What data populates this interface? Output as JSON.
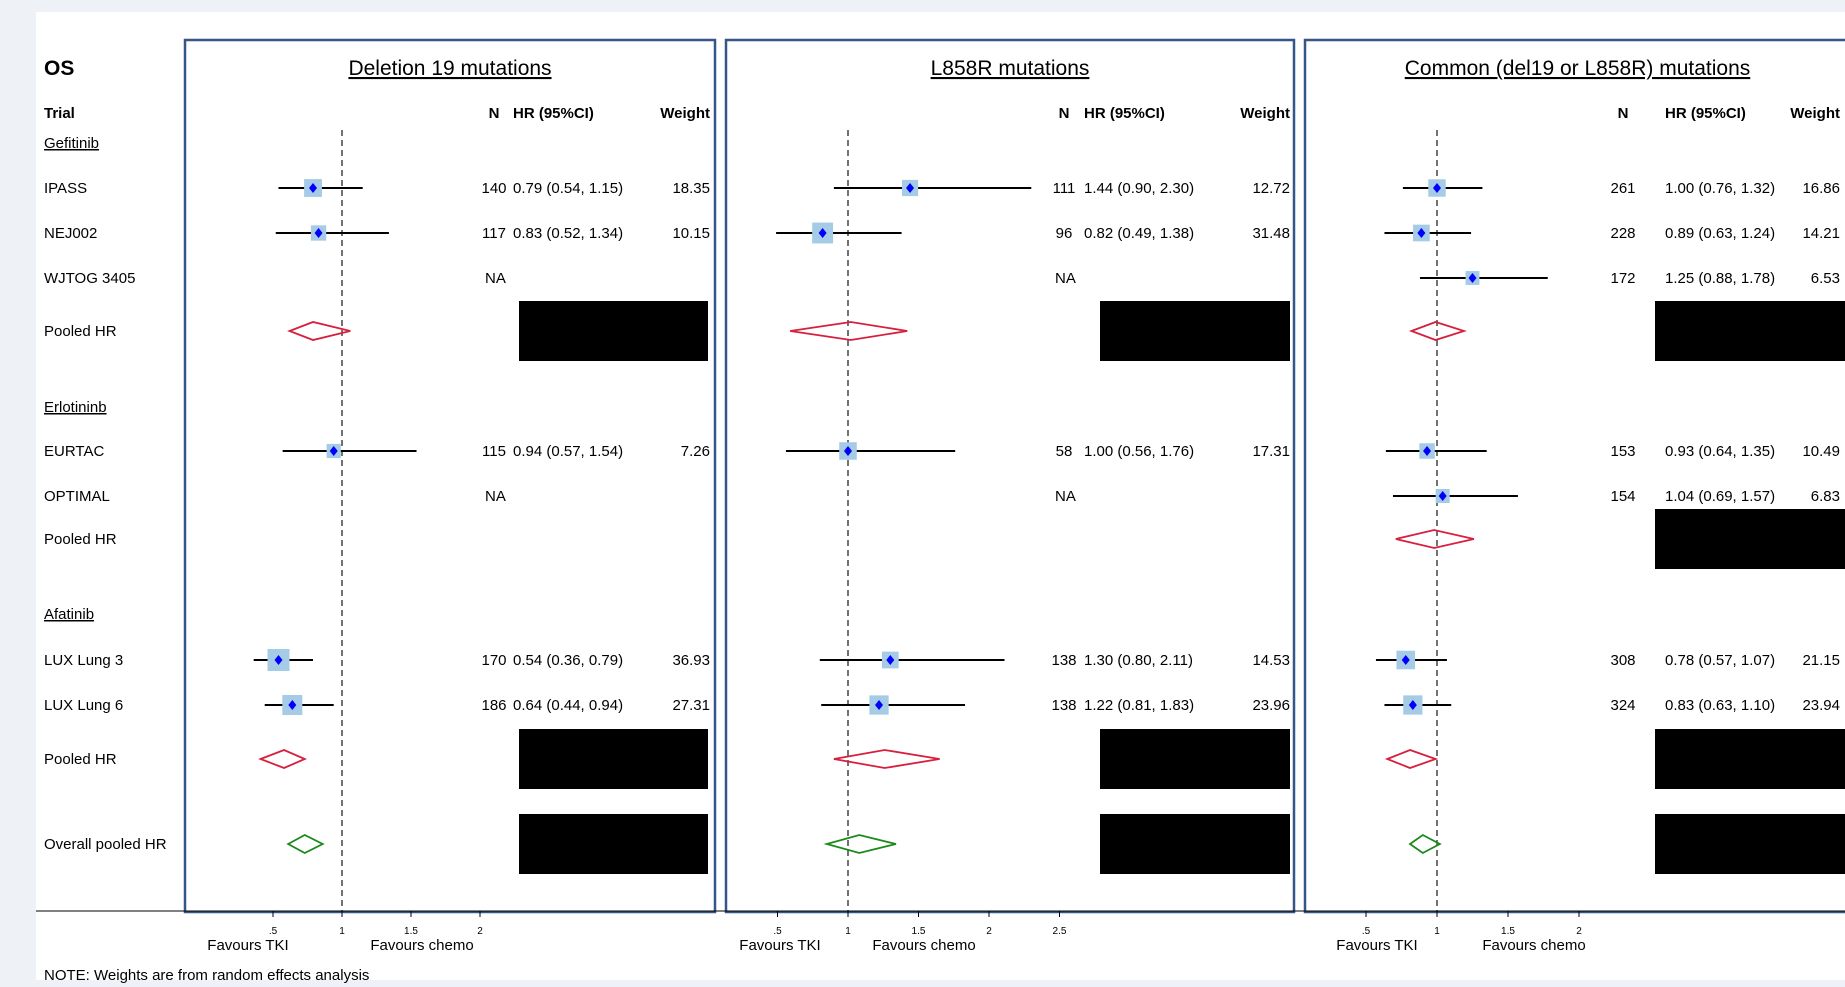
{
  "figure": {
    "outcome": "OS",
    "trial_header": "Trial",
    "col_n": "N",
    "col_hr": "HR (95%CI)",
    "col_weight": "Weight",
    "note": "NOTE: Weights are from random effects analysis",
    "favours_left": "Favours TKI",
    "favours_right": "Favours chemo"
  },
  "colors": {
    "frame": "#34568b",
    "marker": "#0000ff",
    "box": "#a6cbe6",
    "pooled": "#d6203e",
    "overall": "#1a8a1a",
    "redacted": "#000000"
  },
  "rows": [
    {
      "label": "Gefitinib",
      "type": "header"
    },
    {
      "label": "IPASS",
      "type": "study"
    },
    {
      "label": "NEJ002",
      "type": "study"
    },
    {
      "label": "WJTOG 3405",
      "type": "study"
    },
    {
      "label": "Pooled HR",
      "type": "pooled"
    },
    {
      "label": "Erlotininb",
      "type": "header"
    },
    {
      "label": "EURTAC",
      "type": "study"
    },
    {
      "label": "OPTIMAL",
      "type": "study"
    },
    {
      "label": "Pooled HR",
      "type": "pooled"
    },
    {
      "label": "Afatinib",
      "type": "header"
    },
    {
      "label": "LUX Lung 3",
      "type": "study"
    },
    {
      "label": "LUX Lung 6",
      "type": "study"
    },
    {
      "label": "Pooled HR",
      "type": "pooled"
    },
    {
      "label": "Overall pooled HR",
      "type": "overall"
    }
  ],
  "chart_data": [
    {
      "type": "forest",
      "title": "Deletion 19 mutations",
      "ticks": [
        0.5,
        1,
        1.5,
        2
      ],
      "tick_labels": [
        ".5",
        "1",
        "1.5",
        "2"
      ],
      "xlim": [
        0.25,
        2.25
      ],
      "reference": 1,
      "rows": [
        {
          "row": "IPASS",
          "n": "140",
          "hr": 0.79,
          "lo": 0.54,
          "hi": 1.15,
          "hr_text": "0.79 (0.54, 1.15)",
          "weight": "18.35"
        },
        {
          "row": "NEJ002",
          "n": "117",
          "hr": 0.83,
          "lo": 0.52,
          "hi": 1.34,
          "hr_text": "0.83 (0.52, 1.34)",
          "weight": "10.15"
        },
        {
          "row": "WJTOG 3405",
          "n": "NA"
        },
        {
          "row": "Pooled HR (Gefitinib)",
          "diamond": [
            0.62,
            0.79,
            1.06
          ],
          "redacted": true
        },
        {
          "row": "EURTAC",
          "n": "115",
          "hr": 0.94,
          "lo": 0.57,
          "hi": 1.54,
          "hr_text": "0.94 (0.57, 1.54)",
          "weight": "7.26"
        },
        {
          "row": "OPTIMAL",
          "n": "NA"
        },
        {
          "row": "Pooled HR (Erlotininb)"
        },
        {
          "row": "LUX Lung 3",
          "n": "170",
          "hr": 0.54,
          "lo": 0.36,
          "hi": 0.79,
          "hr_text": "0.54 (0.36, 0.79)",
          "weight": "36.93"
        },
        {
          "row": "LUX Lung 6",
          "n": "186",
          "hr": 0.64,
          "lo": 0.44,
          "hi": 0.94,
          "hr_text": "0.64 (0.44, 0.94)",
          "weight": "27.31"
        },
        {
          "row": "Pooled HR (Afatinib)",
          "diamond": [
            0.41,
            0.58,
            0.73
          ],
          "redacted": true
        },
        {
          "row": "Overall pooled HR",
          "diamond": [
            0.61,
            0.73,
            0.86
          ],
          "redacted": true
        }
      ]
    },
    {
      "type": "forest",
      "title": "L858R mutations",
      "ticks": [
        0.5,
        1,
        1.5,
        2,
        2.5
      ],
      "tick_labels": [
        ".5",
        "1",
        "1.5",
        "2",
        "2.5"
      ],
      "xlim": [
        0.25,
        2.75
      ],
      "reference": 1,
      "rows": [
        {
          "row": "IPASS",
          "n": "111",
          "hr": 1.44,
          "lo": 0.9,
          "hi": 2.3,
          "hr_text": "1.44 (0.90, 2.30)",
          "weight": "12.72"
        },
        {
          "row": "NEJ002",
          "n": "96",
          "hr": 0.82,
          "lo": 0.49,
          "hi": 1.38,
          "hr_text": "0.82 (0.49, 1.38)",
          "weight": "31.48"
        },
        {
          "row": "WJTOG 3405",
          "n": "NA"
        },
        {
          "row": "Pooled HR (Gefitinib)",
          "diamond": [
            0.59,
            1.02,
            1.42
          ],
          "redacted": true
        },
        {
          "row": "EURTAC",
          "n": "58",
          "hr": 1.0,
          "lo": 0.56,
          "hi": 1.76,
          "hr_text": "1.00 (0.56, 1.76)",
          "weight": "17.31"
        },
        {
          "row": "OPTIMAL",
          "n": "NA"
        },
        {
          "row": "Pooled HR (Erlotininb)"
        },
        {
          "row": "LUX Lung 3",
          "n": "138",
          "hr": 1.3,
          "lo": 0.8,
          "hi": 2.11,
          "hr_text": "1.30 (0.80, 2.11)",
          "weight": "14.53"
        },
        {
          "row": "LUX Lung 6",
          "n": "138",
          "hr": 1.22,
          "lo": 0.81,
          "hi": 1.83,
          "hr_text": "1.22 (0.81, 1.83)",
          "weight": "23.96"
        },
        {
          "row": "Pooled HR (Afatinib)",
          "diamond": [
            0.9,
            1.26,
            1.65
          ],
          "redacted": true
        },
        {
          "row": "Overall pooled HR",
          "diamond": [
            0.85,
            1.08,
            1.34
          ],
          "redacted": true
        }
      ]
    },
    {
      "type": "forest",
      "title": "Common (del19 or L858R) mutations",
      "ticks": [
        0.5,
        1,
        1.5,
        2
      ],
      "tick_labels": [
        ".5",
        "1",
        "1.5",
        "2"
      ],
      "xlim": [
        0.5,
        2.5
      ],
      "reference": 1,
      "rows": [
        {
          "row": "IPASS",
          "n": "261",
          "hr": 1.0,
          "lo": 0.76,
          "hi": 1.32,
          "hr_text": "1.00 (0.76, 1.32)",
          "weight": "16.86"
        },
        {
          "row": "NEJ002",
          "n": "228",
          "hr": 0.89,
          "lo": 0.63,
          "hi": 1.24,
          "hr_text": "0.89 (0.63, 1.24)",
          "weight": "14.21"
        },
        {
          "row": "WJTOG 3405",
          "n": "172",
          "hr": 1.25,
          "lo": 0.88,
          "hi": 1.78,
          "hr_text": "1.25 (0.88, 1.78)",
          "weight": "6.53"
        },
        {
          "row": "Pooled HR (Gefitinib)",
          "diamond": [
            0.82,
            0.99,
            1.19
          ],
          "redacted": true
        },
        {
          "row": "EURTAC",
          "n": "153",
          "hr": 0.93,
          "lo": 0.64,
          "hi": 1.35,
          "hr_text": "0.93 (0.64, 1.35)",
          "weight": "10.49"
        },
        {
          "row": "OPTIMAL",
          "n": "154",
          "hr": 1.04,
          "lo": 0.69,
          "hi": 1.57,
          "hr_text": "1.04 (0.69, 1.57)",
          "weight": "6.83"
        },
        {
          "row": "Pooled HR (Erlotininb)",
          "diamond": [
            0.71,
            0.98,
            1.26
          ],
          "redacted": true
        },
        {
          "row": "LUX Lung 3",
          "n": "308",
          "hr": 0.78,
          "lo": 0.57,
          "hi": 1.07,
          "hr_text": "0.78 (0.57, 1.07)",
          "weight": "21.15"
        },
        {
          "row": "LUX Lung 6",
          "n": "324",
          "hr": 0.83,
          "lo": 0.63,
          "hi": 1.1,
          "hr_text": "0.83 (0.63, 1.10)",
          "weight": "23.94"
        },
        {
          "row": "Pooled HR (Afatinib)",
          "diamond": [
            0.65,
            0.81,
            0.99
          ],
          "redacted": true
        },
        {
          "row": "Overall pooled HR",
          "diamond": [
            0.81,
            0.9,
            1.02
          ],
          "redacted": true
        }
      ]
    }
  ]
}
